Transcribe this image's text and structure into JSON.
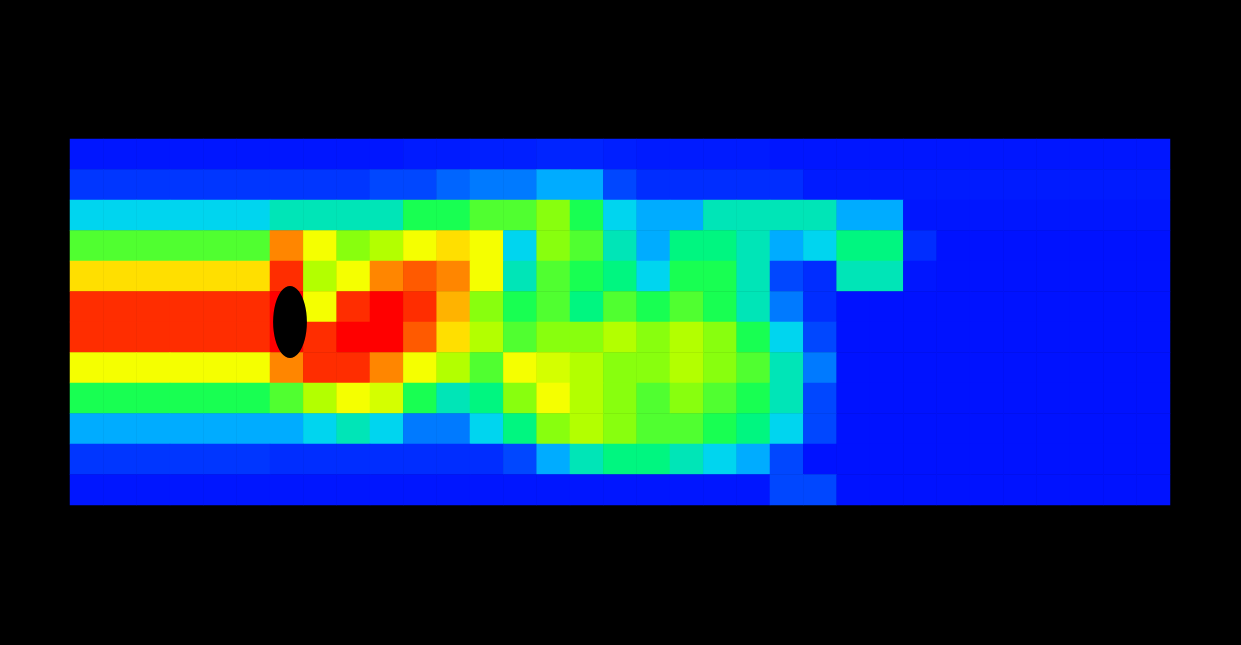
{
  "chart_data": {
    "type": "heatmap",
    "tick_labels": false,
    "grid": false,
    "value_range": [
      0,
      1
    ],
    "cells": [
      [
        0.05,
        0.05,
        0.05,
        0.05,
        0.05,
        0.05,
        0.05,
        0.05,
        0.05,
        0.05,
        0.06,
        0.06,
        0.07,
        0.07,
        0.08,
        0.08,
        0.07,
        0.06,
        0.06,
        0.06,
        0.06,
        0.05,
        0.05,
        0.05,
        0.05,
        0.05,
        0.05,
        0.05,
        0.05,
        0.05,
        0.05,
        0.05,
        0.05
      ],
      [
        0.12,
        0.12,
        0.12,
        0.12,
        0.12,
        0.12,
        0.12,
        0.12,
        0.12,
        0.15,
        0.15,
        0.18,
        0.2,
        0.2,
        0.25,
        0.25,
        0.15,
        0.1,
        0.1,
        0.1,
        0.1,
        0.1,
        0.06,
        0.06,
        0.06,
        0.06,
        0.06,
        0.06,
        0.06,
        0.06,
        0.06,
        0.06,
        0.06
      ],
      [
        0.3,
        0.3,
        0.3,
        0.3,
        0.3,
        0.3,
        0.35,
        0.35,
        0.35,
        0.35,
        0.45,
        0.45,
        0.5,
        0.5,
        0.55,
        0.45,
        0.3,
        0.25,
        0.25,
        0.35,
        0.35,
        0.35,
        0.35,
        0.25,
        0.25,
        0.05,
        0.05,
        0.05,
        0.05,
        0.05,
        0.05,
        0.05,
        0.05
      ],
      [
        0.5,
        0.5,
        0.5,
        0.5,
        0.5,
        0.5,
        0.85,
        0.7,
        0.55,
        0.6,
        0.7,
        0.75,
        0.7,
        0.3,
        0.55,
        0.5,
        0.35,
        0.25,
        0.4,
        0.4,
        0.35,
        0.25,
        0.3,
        0.4,
        0.4,
        0.1,
        0.04,
        0.04,
        0.04,
        0.04,
        0.04,
        0.04,
        0.04
      ],
      [
        0.75,
        0.75,
        0.75,
        0.75,
        0.75,
        0.75,
        0.95,
        0.6,
        0.7,
        0.85,
        0.9,
        0.85,
        0.7,
        0.35,
        0.5,
        0.45,
        0.4,
        0.3,
        0.45,
        0.45,
        0.35,
        0.15,
        0.1,
        0.35,
        0.35,
        0.05,
        0.04,
        0.04,
        0.04,
        0.04,
        0.04,
        0.04,
        0.04
      ],
      [
        0.95,
        0.95,
        0.95,
        0.95,
        0.95,
        0.95,
        1,
        0.7,
        0.95,
        1,
        0.95,
        0.8,
        0.55,
        0.45,
        0.5,
        0.4,
        0.5,
        0.45,
        0.5,
        0.45,
        0.35,
        0.2,
        0.1,
        0.04,
        0.04,
        0.04,
        0.04,
        0.04,
        0.04,
        0.04,
        0.04,
        0.04,
        0.04
      ],
      [
        0.95,
        0.95,
        0.95,
        0.95,
        0.95,
        0.95,
        1,
        0.95,
        1,
        1,
        0.9,
        0.75,
        0.6,
        0.5,
        0.55,
        0.55,
        0.6,
        0.55,
        0.6,
        0.55,
        0.45,
        0.3,
        0.15,
        0.04,
        0.04,
        0.04,
        0.04,
        0.04,
        0.04,
        0.04,
        0.04,
        0.04,
        0.04
      ],
      [
        0.7,
        0.7,
        0.7,
        0.7,
        0.7,
        0.7,
        0.85,
        0.95,
        0.95,
        0.85,
        0.7,
        0.6,
        0.5,
        0.7,
        0.65,
        0.6,
        0.55,
        0.55,
        0.6,
        0.55,
        0.5,
        0.35,
        0.2,
        0.04,
        0.04,
        0.04,
        0.04,
        0.04,
        0.04,
        0.04,
        0.04,
        0.04,
        0.04
      ],
      [
        0.45,
        0.45,
        0.45,
        0.45,
        0.45,
        0.45,
        0.5,
        0.6,
        0.7,
        0.65,
        0.45,
        0.35,
        0.4,
        0.55,
        0.7,
        0.6,
        0.55,
        0.5,
        0.55,
        0.5,
        0.45,
        0.35,
        0.15,
        0.04,
        0.04,
        0.04,
        0.04,
        0.04,
        0.04,
        0.04,
        0.04,
        0.04,
        0.04
      ],
      [
        0.25,
        0.25,
        0.25,
        0.25,
        0.25,
        0.25,
        0.25,
        0.3,
        0.35,
        0.3,
        0.2,
        0.2,
        0.3,
        0.4,
        0.55,
        0.6,
        0.55,
        0.5,
        0.5,
        0.45,
        0.4,
        0.3,
        0.15,
        0.04,
        0.04,
        0.04,
        0.04,
        0.04,
        0.04,
        0.04,
        0.04,
        0.04,
        0.04
      ],
      [
        0.12,
        0.12,
        0.12,
        0.12,
        0.12,
        0.12,
        0.1,
        0.1,
        0.1,
        0.1,
        0.1,
        0.1,
        0.1,
        0.15,
        0.25,
        0.35,
        0.4,
        0.4,
        0.35,
        0.3,
        0.25,
        0.15,
        0.04,
        0.04,
        0.04,
        0.04,
        0.04,
        0.04,
        0.04,
        0.04,
        0.04,
        0.04,
        0.04
      ],
      [
        0.05,
        0.05,
        0.05,
        0.05,
        0.05,
        0.05,
        0.05,
        0.05,
        0.05,
        0.05,
        0.05,
        0.05,
        0.05,
        0.05,
        0.05,
        0.05,
        0.05,
        0.05,
        0.05,
        0.05,
        0.05,
        0.15,
        0.15,
        0.04,
        0.04,
        0.04,
        0.04,
        0.04,
        0.04,
        0.04,
        0.04,
        0.04,
        0.04
      ]
    ]
  }
}
